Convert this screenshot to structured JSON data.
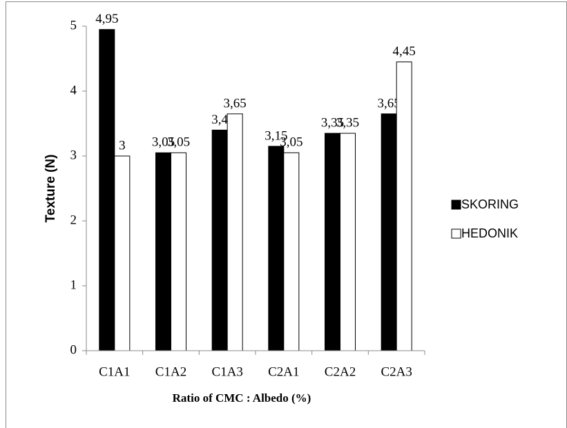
{
  "chart_data": {
    "type": "bar",
    "x_label": "Ratio of  CMC : Albedo (%)",
    "y_label": "Texture (N)",
    "categories": [
      "C1A1",
      "C1A2",
      "C1A3",
      "C2A1",
      "C2A2",
      "C2A3"
    ],
    "series": [
      {
        "name": "SKORING",
        "color": "#000000",
        "values": [
          4.95,
          3.05,
          3.4,
          3.15,
          3.35,
          3.65
        ],
        "value_labels": [
          "4,95",
          "3,05",
          "3,4",
          "3,15",
          "3,35",
          "3,65"
        ]
      },
      {
        "name": "HEDONIK",
        "color": "#ffffff",
        "values": [
          3,
          3.05,
          3.65,
          3.05,
          3.35,
          4.45
        ],
        "value_labels": [
          "3",
          "3,05",
          "3,65",
          "3,05",
          "3,35",
          "4,45"
        ]
      }
    ],
    "ylim": [
      0,
      5
    ],
    "yticks": [
      0,
      1,
      2,
      3,
      4,
      5
    ],
    "grid": false,
    "legend": "right"
  }
}
